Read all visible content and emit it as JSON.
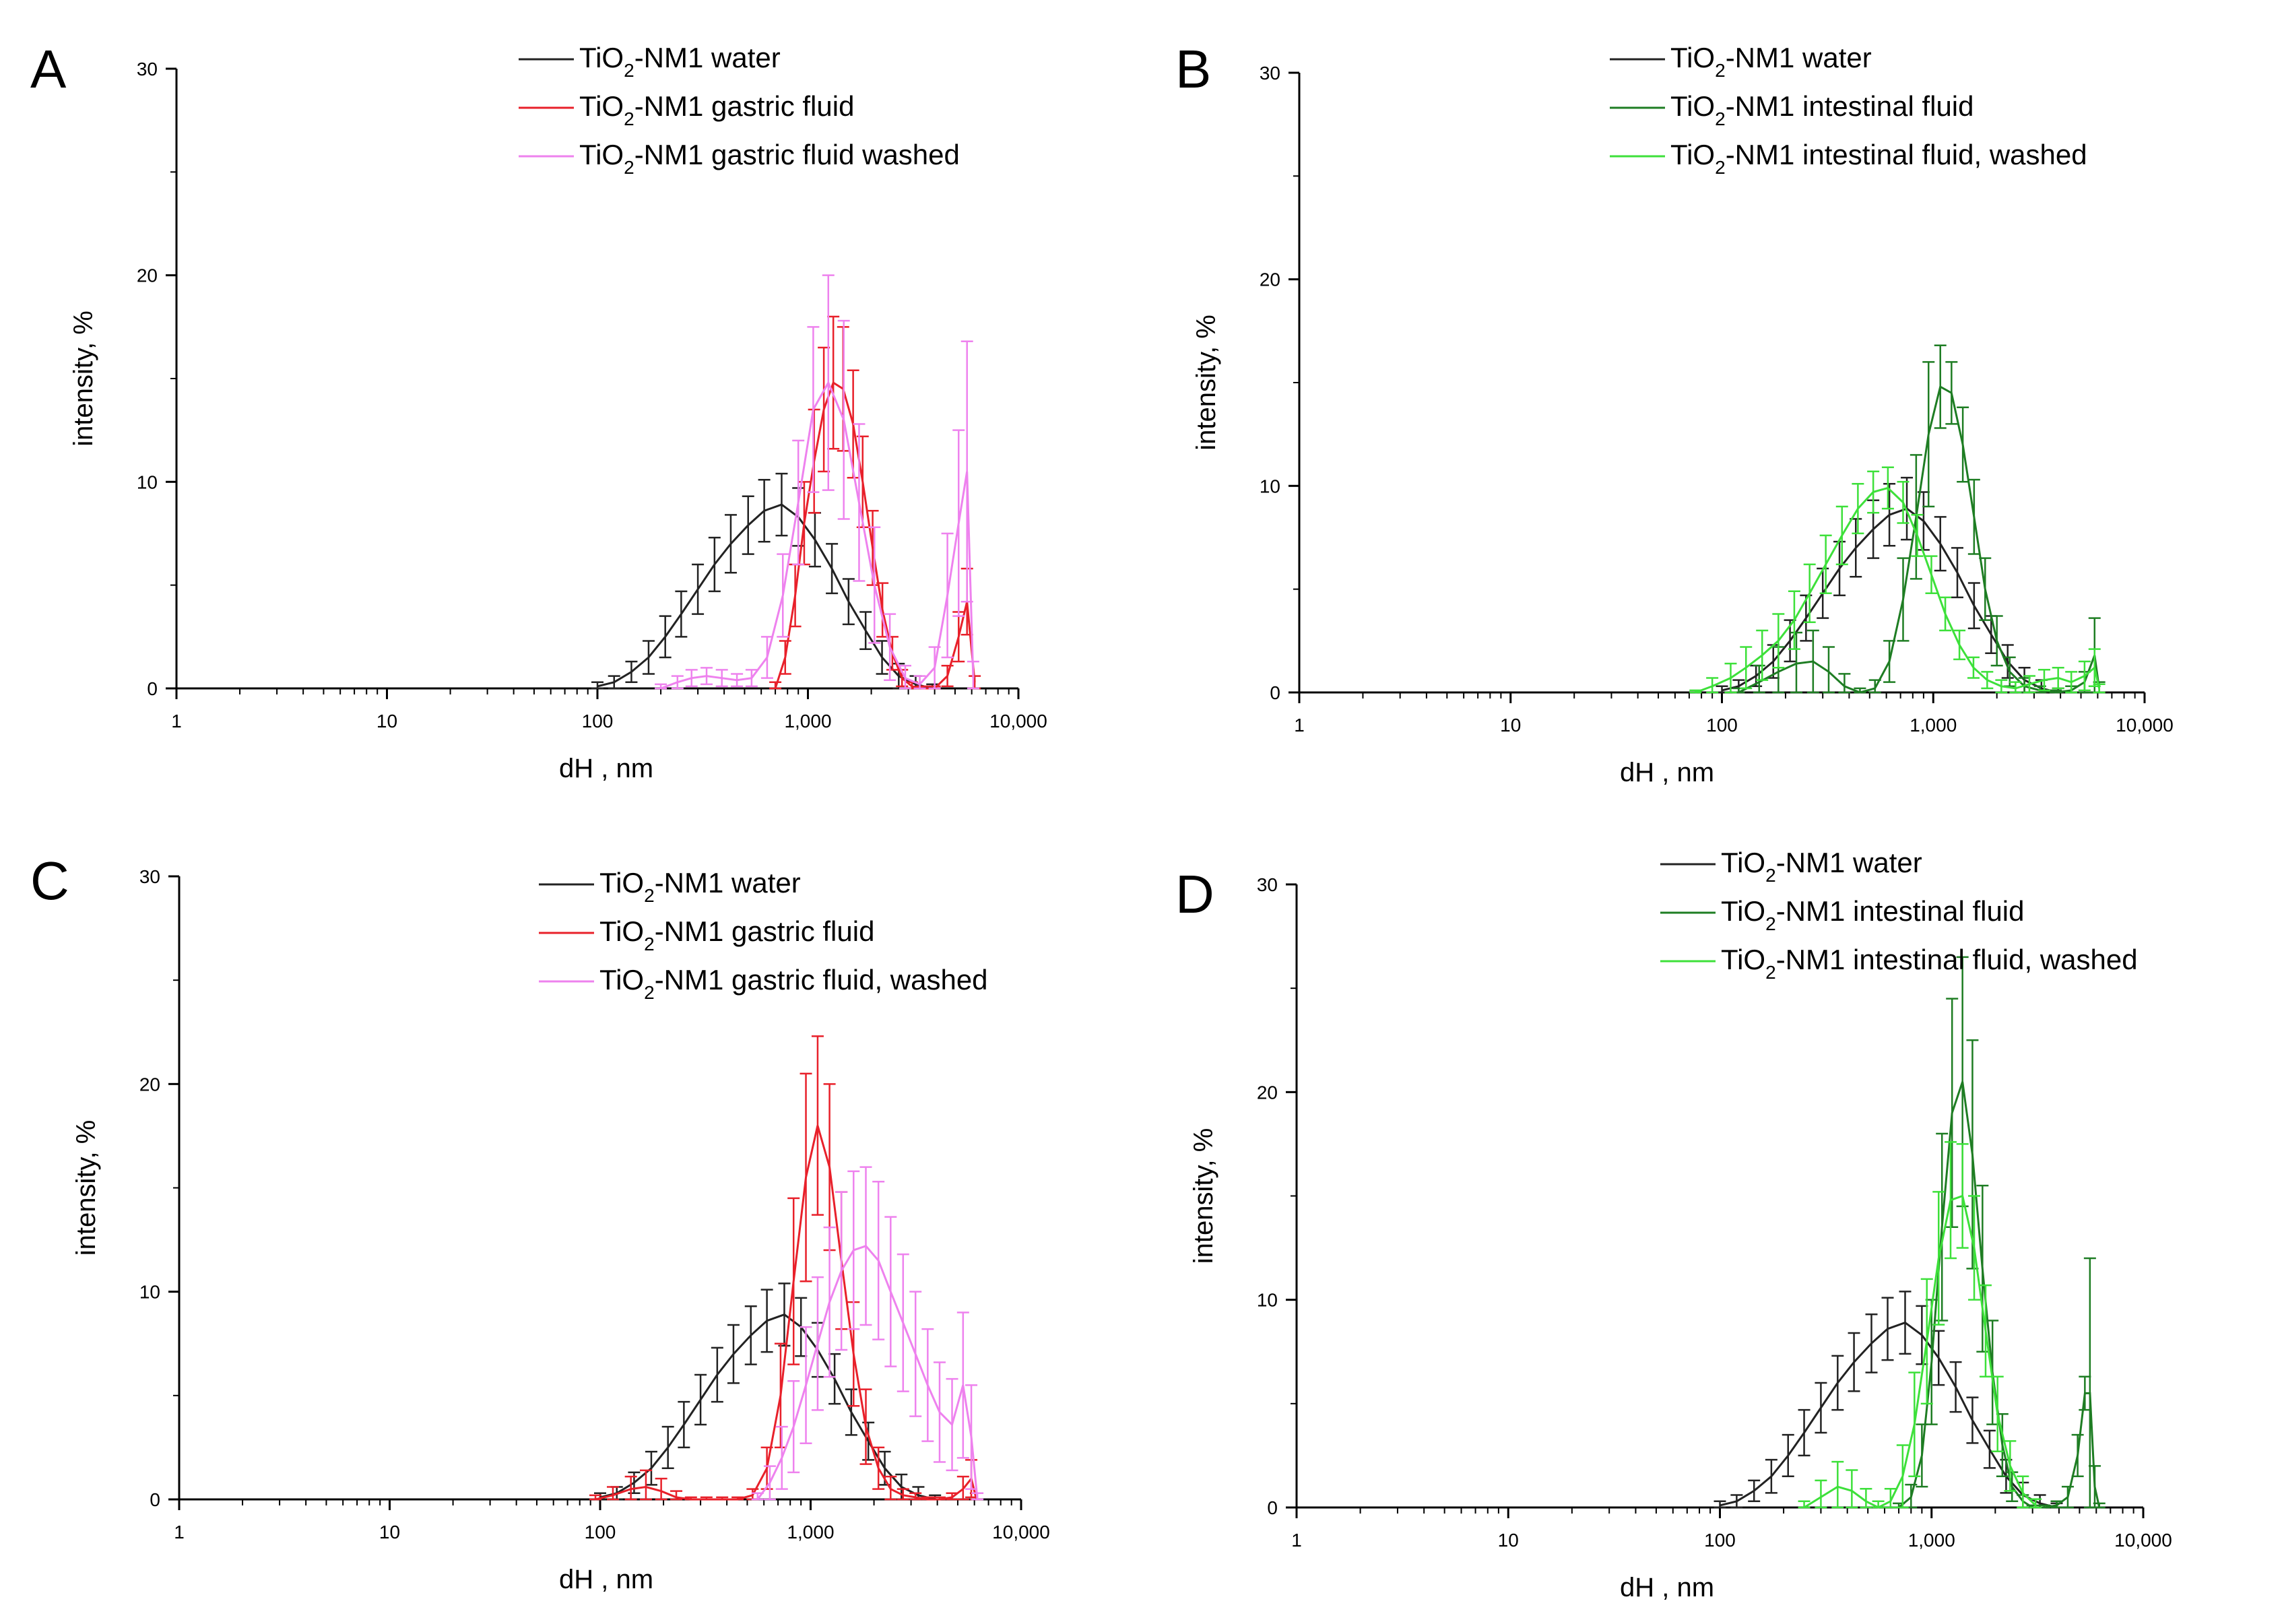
{
  "figure": {
    "panels_order": [
      "A",
      "B",
      "C",
      "D"
    ]
  },
  "chart_data": [
    {
      "panel": "A",
      "type": "line",
      "xscale": "log",
      "xlim": [
        1,
        10000
      ],
      "ylim": [
        0,
        30
      ],
      "xticks": [
        "1",
        "10",
        "100",
        "1,000",
        "10,000"
      ],
      "yticks": [
        "0",
        "10",
        "20",
        "30"
      ],
      "xlabel": "dH , nm",
      "ylabel": "intensity, %",
      "legend": "top-right",
      "series": [
        {
          "name_main": "TiO",
          "name_sub": "2",
          "name_rest": "-NM1 water",
          "color": "#222222",
          "x": [
            100,
            120,
            145,
            175,
            210,
            250,
            300,
            360,
            430,
            520,
            620,
            750,
            900,
            1080,
            1300,
            1560,
            1880,
            2250,
            2700,
            3250,
            3900
          ],
          "y": [
            0.1,
            0.3,
            0.8,
            1.5,
            2.5,
            3.6,
            4.8,
            6.0,
            7.0,
            7.9,
            8.6,
            8.9,
            8.3,
            7.2,
            5.8,
            4.2,
            2.8,
            1.5,
            0.6,
            0.2,
            0.0
          ],
          "err": [
            0.2,
            0.3,
            0.5,
            0.8,
            1.0,
            1.1,
            1.2,
            1.3,
            1.4,
            1.4,
            1.5,
            1.5,
            1.4,
            1.3,
            1.2,
            1.1,
            0.9,
            0.8,
            0.6,
            0.4,
            0.2
          ]
        },
        {
          "name_main": "TiO",
          "name_sub": "2",
          "name_rest": "-NM1 gastric fluid",
          "color": "#e8202a",
          "x": [
            700,
            780,
            870,
            960,
            1070,
            1190,
            1320,
            1470,
            1640,
            1820,
            2030,
            2260,
            2520,
            2800,
            3120,
            3500,
            4000,
            4600,
            5200,
            5700,
            6200
          ],
          "y": [
            0.0,
            1.5,
            4.5,
            8.0,
            11.0,
            13.5,
            14.8,
            14.5,
            12.8,
            10.0,
            6.8,
            3.8,
            1.7,
            0.5,
            0.1,
            0.0,
            0.0,
            0.6,
            2.5,
            4.2,
            0.3
          ],
          "err": [
            0.3,
            0.8,
            1.5,
            2.0,
            2.5,
            3.0,
            3.2,
            3.0,
            2.6,
            2.2,
            1.8,
            1.3,
            0.8,
            0.4,
            0.2,
            0.1,
            0.1,
            0.5,
            1.2,
            1.6,
            0.3
          ]
        },
        {
          "name_main": "TiO",
          "name_sub": "2",
          "name_rest": "-NM1 gastric fluid washed",
          "color": "#ee82ee",
          "x": [
            200,
            240,
            280,
            330,
            390,
            460,
            540,
            640,
            760,
            900,
            1060,
            1250,
            1480,
            1750,
            2070,
            2450,
            2900,
            3400,
            4000,
            4600,
            5200,
            5700,
            6100
          ],
          "y": [
            0.0,
            0.3,
            0.5,
            0.6,
            0.5,
            0.4,
            0.5,
            1.5,
            4.5,
            9.0,
            13.5,
            14.8,
            13.0,
            9.0,
            5.0,
            2.0,
            0.5,
            0.2,
            1.0,
            4.5,
            8.0,
            10.5,
            0.5
          ],
          "err": [
            0.2,
            0.3,
            0.4,
            0.4,
            0.4,
            0.3,
            0.4,
            1.0,
            2.0,
            3.0,
            4.0,
            5.2,
            4.8,
            3.8,
            2.8,
            1.6,
            0.6,
            0.4,
            1.0,
            3.0,
            4.5,
            6.3,
            0.8
          ]
        }
      ]
    },
    {
      "panel": "B",
      "type": "line",
      "xscale": "log",
      "xlim": [
        1,
        10000
      ],
      "ylim": [
        0,
        30
      ],
      "xticks": [
        "1",
        "10",
        "100",
        "1,000",
        "10,000"
      ],
      "yticks": [
        "0",
        "10",
        "20",
        "30"
      ],
      "xlabel": "dH , nm",
      "ylabel": "intensity, %",
      "legend": "top-right",
      "series": [
        {
          "name_main": "TiO",
          "name_sub": "2",
          "name_rest": "-NM1 water",
          "color": "#222222",
          "x": [
            100,
            120,
            145,
            175,
            210,
            250,
            300,
            360,
            430,
            520,
            620,
            750,
            900,
            1080,
            1300,
            1560,
            1880,
            2250,
            2700,
            3250,
            3900
          ],
          "y": [
            0.1,
            0.3,
            0.8,
            1.5,
            2.5,
            3.6,
            4.8,
            6.0,
            7.0,
            7.9,
            8.6,
            8.9,
            8.3,
            7.2,
            5.8,
            4.2,
            2.8,
            1.5,
            0.6,
            0.2,
            0.0
          ],
          "err": [
            0.2,
            0.3,
            0.5,
            0.8,
            1.0,
            1.1,
            1.2,
            1.3,
            1.4,
            1.4,
            1.5,
            1.5,
            1.4,
            1.3,
            1.2,
            1.1,
            0.9,
            0.8,
            0.6,
            0.4,
            0.2
          ]
        },
        {
          "name_main": "TiO",
          "name_sub": "2",
          "name_rest": "-NM1 intestinal fluid",
          "color": "#1e7d23",
          "x": [
            120,
            150,
            185,
            225,
            270,
            320,
            380,
            450,
            530,
            620,
            720,
            830,
            950,
            1080,
            1220,
            1380,
            1560,
            1760,
            2000,
            2300,
            2700,
            3200,
            3800,
            4500,
            5200,
            5800,
            6100
          ],
          "y": [
            0.0,
            0.5,
            1.0,
            1.4,
            1.5,
            1.0,
            0.3,
            0.0,
            0.2,
            1.5,
            4.5,
            8.5,
            12.5,
            14.8,
            14.5,
            12.0,
            8.5,
            5.0,
            2.5,
            1.0,
            0.3,
            0.1,
            0.0,
            0.1,
            0.5,
            1.8,
            0.2
          ],
          "err": [
            0.2,
            0.8,
            1.2,
            1.5,
            1.5,
            1.2,
            0.6,
            0.2,
            0.4,
            1.0,
            2.0,
            3.0,
            3.5,
            2.0,
            1.5,
            1.8,
            1.8,
            1.5,
            1.2,
            0.7,
            0.4,
            0.2,
            0.1,
            0.2,
            0.5,
            1.8,
            0.3
          ]
        },
        {
          "name_main": "TiO",
          "name_sub": "2",
          "name_rest": "-NM1 intestinal fluid, washed",
          "color": "#3de03a",
          "x": [
            75,
            90,
            110,
            130,
            155,
            185,
            220,
            260,
            310,
            370,
            440,
            520,
            610,
            720,
            840,
            980,
            1140,
            1330,
            1550,
            1800,
            2100,
            2450,
            2850,
            3350,
            3900,
            4500,
            5200,
            5800,
            6100
          ],
          "y": [
            0.0,
            0.3,
            0.7,
            1.2,
            1.8,
            2.5,
            3.5,
            4.8,
            6.2,
            7.6,
            8.9,
            9.7,
            9.9,
            9.2,
            7.6,
            5.7,
            3.8,
            2.3,
            1.2,
            0.6,
            0.3,
            0.2,
            0.4,
            0.6,
            0.7,
            0.5,
            0.8,
            1.2,
            0.2
          ],
          "err": [
            0.1,
            0.4,
            0.7,
            1.0,
            1.2,
            1.3,
            1.4,
            1.4,
            1.4,
            1.4,
            1.2,
            1.0,
            1.0,
            1.0,
            1.0,
            0.9,
            0.8,
            0.7,
            0.5,
            0.4,
            0.3,
            0.3,
            0.4,
            0.5,
            0.5,
            0.5,
            0.7,
            0.9,
            0.2
          ]
        }
      ]
    },
    {
      "panel": "C",
      "type": "line",
      "xscale": "log",
      "xlim": [
        1,
        10000
      ],
      "ylim": [
        0,
        30
      ],
      "xticks": [
        "1",
        "10",
        "100",
        "1,000",
        "10,000"
      ],
      "yticks": [
        "0",
        "10",
        "20",
        "30"
      ],
      "xlabel": "dH , nm",
      "ylabel": "intensity, %",
      "legend": "top-right",
      "series": [
        {
          "name_main": "TiO",
          "name_sub": "2",
          "name_rest": "-NM1 water",
          "color": "#222222",
          "x": [
            100,
            120,
            145,
            175,
            210,
            250,
            300,
            360,
            430,
            520,
            620,
            750,
            900,
            1080,
            1300,
            1560,
            1880,
            2250,
            2700,
            3250,
            3900
          ],
          "y": [
            0.1,
            0.3,
            0.8,
            1.5,
            2.5,
            3.6,
            4.8,
            6.0,
            7.0,
            7.9,
            8.6,
            8.9,
            8.3,
            7.2,
            5.8,
            4.2,
            2.8,
            1.5,
            0.6,
            0.2,
            0.0
          ],
          "err": [
            0.2,
            0.3,
            0.5,
            0.8,
            1.0,
            1.1,
            1.2,
            1.3,
            1.4,
            1.4,
            1.5,
            1.5,
            1.4,
            1.3,
            1.2,
            1.1,
            0.9,
            0.8,
            0.6,
            0.4,
            0.2
          ]
        },
        {
          "name_main": "TiO",
          "name_sub": "2",
          "name_rest": "-NM1 gastric fluid",
          "color": "#e8202a",
          "x": [
            95,
            115,
            140,
            165,
            195,
            230,
            270,
            320,
            380,
            450,
            530,
            620,
            720,
            830,
            950,
            1080,
            1230,
            1400,
            1600,
            1830,
            2100,
            2400,
            2750,
            3150,
            3600,
            4100,
            4700,
            5300,
            5800,
            6100
          ],
          "y": [
            0.0,
            0.2,
            0.5,
            0.6,
            0.4,
            0.1,
            0.0,
            0.0,
            0.0,
            0.0,
            0.2,
            1.5,
            5.0,
            10.5,
            15.5,
            18.0,
            16.0,
            11.5,
            7.0,
            3.5,
            1.5,
            0.5,
            0.2,
            0.1,
            0.0,
            0.0,
            0.1,
            0.5,
            1.0,
            0.1
          ],
          "err": [
            0.2,
            0.4,
            0.6,
            0.8,
            0.6,
            0.3,
            0.1,
            0.1,
            0.1,
            0.1,
            0.3,
            1.0,
            2.5,
            4.0,
            5.0,
            4.3,
            4.0,
            3.3,
            2.5,
            1.8,
            1.0,
            0.6,
            0.3,
            0.2,
            0.1,
            0.1,
            0.2,
            0.6,
            0.9,
            0.2
          ]
        },
        {
          "name_main": "TiO",
          "name_sub": "2",
          "name_rest": "-NM1 gastric fluid, washed",
          "color": "#ee82ee",
          "x": [
            560,
            640,
            730,
            830,
            950,
            1080,
            1230,
            1400,
            1600,
            1830,
            2100,
            2400,
            2750,
            3150,
            3600,
            4100,
            4700,
            5300,
            5800,
            6200
          ],
          "y": [
            0.0,
            0.8,
            2.0,
            3.5,
            5.5,
            7.5,
            9.5,
            11.0,
            12.0,
            12.2,
            11.5,
            10.0,
            8.5,
            7.0,
            5.5,
            4.2,
            3.6,
            5.5,
            3.0,
            0.0
          ],
          "err": [
            0.3,
            0.8,
            1.5,
            2.2,
            2.8,
            3.2,
            3.6,
            3.8,
            3.8,
            3.8,
            3.8,
            3.6,
            3.3,
            3.0,
            2.7,
            2.4,
            2.2,
            3.5,
            2.5,
            0.3
          ]
        }
      ]
    },
    {
      "panel": "D",
      "type": "line",
      "xscale": "log",
      "xlim": [
        1,
        10000
      ],
      "ylim": [
        0,
        30
      ],
      "xticks": [
        "1",
        "10",
        "100",
        "1,000",
        "10,000"
      ],
      "yticks": [
        "0",
        "10",
        "20",
        "30"
      ],
      "xlabel": "dH , nm",
      "ylabel": "intensity, %",
      "legend": "top-right",
      "series": [
        {
          "name_main": "TiO",
          "name_sub": "2",
          "name_rest": "-NM1 water",
          "color": "#222222",
          "x": [
            100,
            120,
            145,
            175,
            210,
            250,
            300,
            360,
            430,
            520,
            620,
            750,
            900,
            1080,
            1300,
            1560,
            1880,
            2250,
            2700,
            3250,
            3900
          ],
          "y": [
            0.1,
            0.3,
            0.8,
            1.5,
            2.5,
            3.6,
            4.8,
            6.0,
            7.0,
            7.9,
            8.6,
            8.9,
            8.3,
            7.2,
            5.8,
            4.2,
            2.8,
            1.5,
            0.6,
            0.2,
            0.0
          ],
          "err": [
            0.2,
            0.3,
            0.5,
            0.8,
            1.0,
            1.1,
            1.2,
            1.3,
            1.4,
            1.4,
            1.5,
            1.5,
            1.4,
            1.3,
            1.2,
            1.1,
            0.9,
            0.8,
            0.6,
            0.4,
            0.2
          ]
        },
        {
          "name_main": "TiO",
          "name_sub": "2",
          "name_rest": "-NM1 intestinal fluid",
          "color": "#1e7d23",
          "x": [
            700,
            800,
            900,
            1000,
            1120,
            1250,
            1400,
            1560,
            1740,
            1940,
            2160,
            2400,
            2700,
            3000,
            3400,
            3900,
            4400,
            4900,
            5300,
            5600,
            5900,
            6200
          ],
          "y": [
            0.0,
            0.5,
            2.5,
            7.0,
            13.5,
            19.0,
            20.5,
            17.0,
            11.5,
            6.5,
            3.0,
            1.0,
            0.3,
            0.0,
            0.0,
            0.1,
            0.5,
            2.5,
            5.5,
            5.5,
            1.0,
            0.0
          ],
          "err": [
            0.2,
            0.6,
            1.5,
            3.0,
            4.5,
            5.5,
            6.0,
            5.5,
            4.0,
            2.5,
            1.5,
            0.7,
            0.3,
            0.1,
            0.1,
            0.2,
            0.5,
            1.0,
            0.8,
            6.5,
            1.0,
            0.2
          ]
        },
        {
          "name_main": "TiO",
          "name_sub": "2",
          "name_rest": "-NM1 intestinal fluid, washed",
          "color": "#3de03a",
          "x": [
            250,
            300,
            360,
            420,
            490,
            560,
            640,
            730,
            830,
            950,
            1080,
            1230,
            1400,
            1590,
            1800,
            2050,
            2350,
            2700,
            3100
          ],
          "y": [
            0.0,
            0.5,
            1.0,
            0.8,
            0.3,
            0.0,
            0.3,
            1.5,
            4.0,
            8.0,
            12.0,
            14.8,
            15.0,
            12.5,
            8.5,
            4.5,
            2.0,
            0.7,
            0.1
          ],
          "err": [
            0.3,
            0.8,
            1.2,
            1.0,
            0.6,
            0.3,
            0.6,
            1.5,
            2.5,
            3.0,
            3.2,
            2.8,
            2.5,
            2.5,
            2.2,
            1.8,
            1.2,
            0.8,
            0.3
          ]
        }
      ]
    }
  ]
}
